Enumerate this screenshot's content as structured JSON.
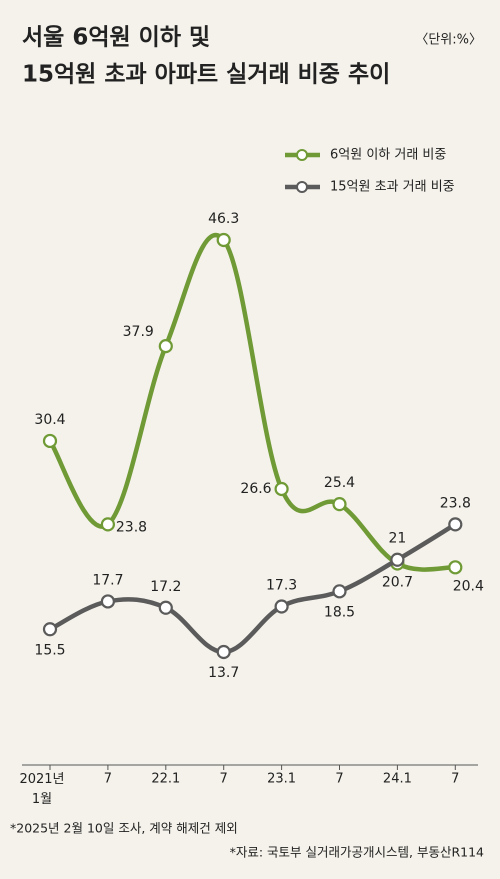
{
  "chart_data": {
    "type": "line",
    "title": [
      "서울 6억원 이하 및",
      "15억원 초과 아파트 실거래 비중 추이"
    ],
    "unit": "〈단위:%〉",
    "categories": [
      "2021년 1월",
      "7",
      "22.1",
      "7",
      "23.1",
      "7",
      "24.1",
      "7"
    ],
    "series": [
      {
        "name": "6억원 이하  거래 비중",
        "color": "#6f9a35",
        "values": [
          30.4,
          23.8,
          37.9,
          46.3,
          26.6,
          25.4,
          20.7,
          20.4
        ]
      },
      {
        "name": "15억원 초과 거래 비중",
        "color": "#5b5b5b",
        "values": [
          15.5,
          17.7,
          17.2,
          13.7,
          17.3,
          18.5,
          21,
          23.8
        ]
      }
    ],
    "notes": [
      "*2025년 2월 10일 조사, 계약 해제건 제외",
      "*자료: 국토부 실거래가공개시스템, 부동산R114"
    ]
  }
}
